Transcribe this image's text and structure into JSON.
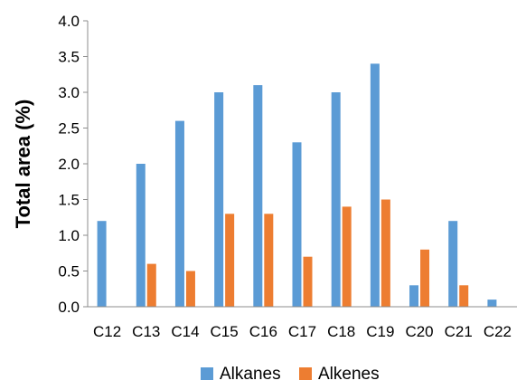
{
  "chart_data": {
    "type": "bar",
    "categories": [
      "C12",
      "C13",
      "C14",
      "C15",
      "C16",
      "C17",
      "C18",
      "C19",
      "C20",
      "C21",
      "C22"
    ],
    "series": [
      {
        "name": "Alkanes",
        "color": "#5b9bd5",
        "values": [
          1.2,
          2.0,
          2.6,
          3.0,
          3.1,
          2.3,
          3.0,
          3.4,
          0.3,
          1.2,
          0.1
        ]
      },
      {
        "name": "Alkenes",
        "color": "#ed7d31",
        "values": [
          0.0,
          0.6,
          0.5,
          1.3,
          1.3,
          0.7,
          1.4,
          1.5,
          0.8,
          0.3,
          0.0
        ]
      }
    ],
    "ylabel": "Total area (%)",
    "xlabel": "",
    "ylim": [
      0,
      4.0
    ],
    "yticks": [
      "0.0",
      "0.5",
      "1.0",
      "1.5",
      "2.0",
      "2.5",
      "3.0",
      "3.5",
      "4.0"
    ],
    "grid": false,
    "legend_position": "bottom"
  }
}
